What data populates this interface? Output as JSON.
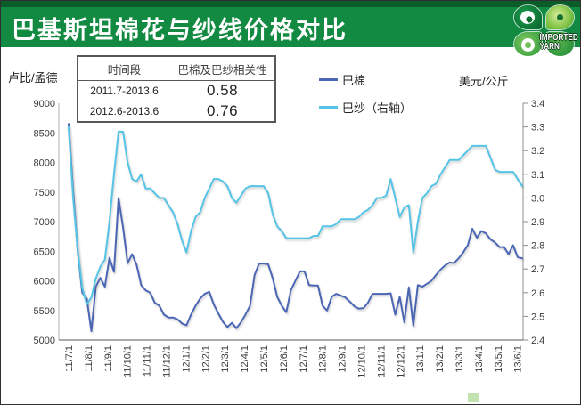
{
  "header": {
    "title": "巴基斯坦棉花与纱线价格对比",
    "logo_line1": "IMPORTED",
    "logo_line2": "YARN"
  },
  "corr_table": {
    "headers": [
      "时间段",
      "巴棉及巴纱相关性"
    ],
    "rows": [
      {
        "period": "2011.7-2013.6",
        "value": "0.58"
      },
      {
        "period": "2012.6-2013.6",
        "value": "0.76"
      }
    ]
  },
  "colors": {
    "header_green": "#128a42",
    "header_dark_green": "#0a5c28",
    "cotton_line": "#4a66b5",
    "yarn_line": "#55c4e6"
  },
  "chart_data": {
    "type": "line",
    "title": "",
    "grid": false,
    "legend_position": "top-inside",
    "left_axis": {
      "label": "卢比/孟德",
      "min": 5000,
      "max": 9000,
      "tick_step": 500,
      "ticks": [
        "9000",
        "8500",
        "8000",
        "7500",
        "7000",
        "6500",
        "6000",
        "5500",
        "5000"
      ]
    },
    "right_axis": {
      "label": "美元/公斤",
      "min": 2.4,
      "max": 3.4,
      "tick_step": 0.1,
      "ticks": [
        "3.4",
        "3.3",
        "3.2",
        "3.1",
        "3.0",
        "2.9",
        "2.8",
        "2.7",
        "2.6",
        "2.5",
        "2.4"
      ]
    },
    "x_ticks": [
      "11/7/1",
      "11/8/1",
      "11/9/1",
      "11/10/1",
      "11/11/1",
      "11/12/1",
      "12/1/1",
      "12/2/1",
      "12/3/1",
      "12/4/1",
      "12/5/1",
      "12/6/1",
      "12/7/1",
      "12/8/1",
      "12/9/1",
      "12/10/1",
      "12/11/1",
      "12/12/1",
      "13/1/1",
      "13/2/1",
      "13/3/1",
      "13/4/1",
      "13/5/1",
      "13/6/1"
    ],
    "series": [
      {
        "name": "巴棉",
        "axis": "left",
        "color": "#4a66b5",
        "values": [
          8650,
          7500,
          6500,
          5800,
          5700,
          5150,
          5900,
          6050,
          5900,
          6390,
          6150,
          7400,
          6900,
          6300,
          6450,
          6270,
          5930,
          5840,
          5800,
          5630,
          5580,
          5430,
          5380,
          5380,
          5350,
          5280,
          5250,
          5430,
          5580,
          5700,
          5780,
          5815,
          5600,
          5450,
          5310,
          5220,
          5290,
          5200,
          5300,
          5430,
          5580,
          6100,
          6290,
          6290,
          6280,
          6040,
          5730,
          5580,
          5470,
          5840,
          6000,
          6160,
          6160,
          5930,
          5920,
          5920,
          5580,
          5500,
          5730,
          5780,
          5750,
          5720,
          5650,
          5570,
          5530,
          5540,
          5630,
          5780,
          5780,
          5780,
          5780,
          5790,
          5430,
          5730,
          5300,
          5890,
          5240,
          5930,
          5900,
          5950,
          6000,
          6100,
          6190,
          6260,
          6310,
          6300,
          6380,
          6480,
          6600,
          6880,
          6730,
          6840,
          6800,
          6700,
          6650,
          6570,
          6570,
          6450,
          6600,
          6400,
          6380
        ]
      },
      {
        "name": "巴纱（右轴）",
        "axis": "right",
        "color": "#55c4e6",
        "values": [
          3.3,
          3.0,
          2.78,
          2.62,
          2.55,
          2.58,
          2.66,
          2.71,
          2.74,
          2.9,
          3.1,
          3.28,
          3.28,
          3.15,
          3.08,
          3.07,
          3.1,
          3.04,
          3.04,
          3.02,
          3.0,
          3.0,
          2.97,
          2.94,
          2.89,
          2.82,
          2.77,
          2.86,
          2.92,
          2.94,
          3.0,
          3.04,
          3.08,
          3.08,
          3.07,
          3.05,
          3.0,
          2.98,
          3.01,
          3.04,
          3.05,
          3.05,
          3.05,
          3.05,
          3.02,
          2.93,
          2.88,
          2.86,
          2.83,
          2.83,
          2.83,
          2.83,
          2.83,
          2.83,
          2.84,
          2.84,
          2.88,
          2.88,
          2.88,
          2.89,
          2.91,
          2.91,
          2.91,
          2.91,
          2.92,
          2.94,
          2.95,
          2.97,
          3.0,
          3.0,
          3.01,
          3.08,
          3.0,
          2.92,
          2.96,
          2.97,
          2.77,
          2.9,
          3.0,
          3.02,
          3.05,
          3.06,
          3.1,
          3.13,
          3.16,
          3.16,
          3.16,
          3.18,
          3.2,
          3.22,
          3.22,
          3.22,
          3.22,
          3.17,
          3.12,
          3.11,
          3.11,
          3.11,
          3.11,
          3.08,
          3.05
        ]
      }
    ]
  }
}
